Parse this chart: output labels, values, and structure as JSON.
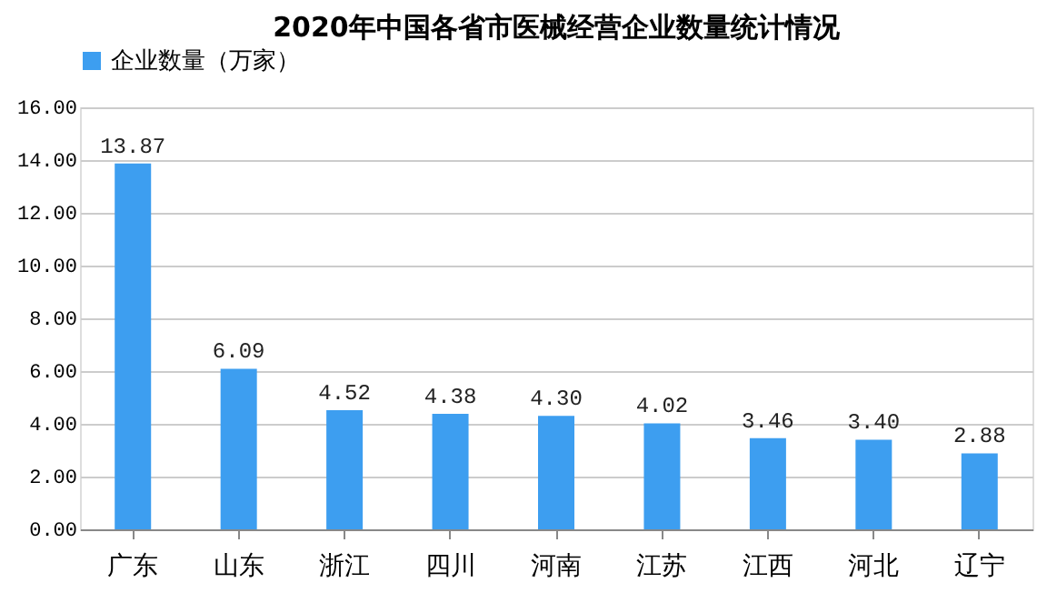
{
  "chart_data": {
    "type": "bar",
    "title": "2020年中国各省市医械经营企业数量统计情况",
    "categories": [
      "广东",
      "山东",
      "浙江",
      "四川",
      "河南",
      "江苏",
      "江西",
      "河北",
      "辽宁"
    ],
    "series": [
      {
        "name": "企业数量（万家）",
        "color": "#3d9ef0",
        "values": [
          13.87,
          6.09,
          4.52,
          4.38,
          4.3,
          4.02,
          3.46,
          3.4,
          2.88
        ],
        "value_labels": [
          "13.87",
          "6.09",
          "4.52",
          "4.38",
          "4.30",
          "4.02",
          "3.46",
          "3.40",
          "2.88"
        ]
      }
    ],
    "ylim": [
      0,
      16
    ],
    "yticks": [
      {
        "value": 0,
        "label": "0.00"
      },
      {
        "value": 2,
        "label": "2.00"
      },
      {
        "value": 4,
        "label": "4.00"
      },
      {
        "value": 6,
        "label": "6.00"
      },
      {
        "value": 8,
        "label": "8.00"
      },
      {
        "value": 10,
        "label": "10.00"
      },
      {
        "value": 12,
        "label": "12.00"
      },
      {
        "value": 14,
        "label": "14.00"
      },
      {
        "value": 16,
        "label": "16.00"
      }
    ],
    "grid": "y",
    "legend": "top"
  }
}
